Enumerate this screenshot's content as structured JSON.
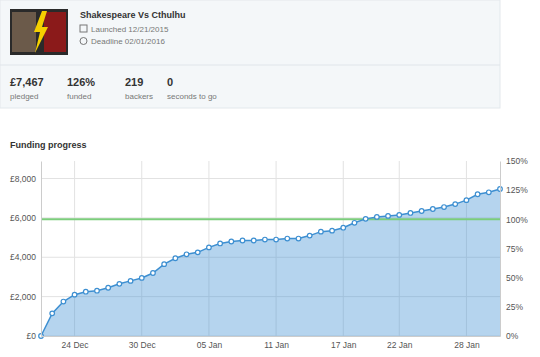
{
  "header": {
    "title": "Shakespeare Vs Cthulhu",
    "launched": "Launched 12/21/2015",
    "deadline": "Deadline 02/01/2016"
  },
  "stats": [
    {
      "value": "£7,467",
      "label": "pledged"
    },
    {
      "value": "126%",
      "label": "funded"
    },
    {
      "value": "219",
      "label": "backers"
    },
    {
      "value": "0",
      "label": "seconds to go"
    }
  ],
  "chart_data": {
    "type": "area",
    "title": "Funding progress",
    "categories": [
      null,
      null,
      null,
      "24 Dec",
      null,
      null,
      null,
      null,
      null,
      "30 Dec",
      null,
      null,
      null,
      null,
      null,
      "05 Jan",
      null,
      null,
      null,
      null,
      null,
      "11 Jan",
      null,
      null,
      null,
      null,
      null,
      "17 Jan",
      null,
      null,
      null,
      null,
      "22 Jan",
      null,
      null,
      null,
      null,
      null,
      "28 Jan",
      null,
      null,
      null
    ],
    "values": [
      0,
      1150,
      1750,
      2100,
      2250,
      2300,
      2450,
      2650,
      2800,
      2950,
      3200,
      3650,
      3950,
      4150,
      4250,
      4500,
      4700,
      4800,
      4850,
      4850,
      4900,
      4900,
      4950,
      4950,
      5100,
      5300,
      5350,
      5500,
      5750,
      5950,
      6050,
      6100,
      6150,
      6250,
      6350,
      6450,
      6550,
      6700,
      6900,
      7200,
      7300,
      7467
    ],
    "color": "#3d8fd1",
    "marker": "circle",
    "goal": 5926,
    "ylim": [
      0,
      8889
    ],
    "yticks": [
      {
        "value": 0,
        "label": "£0"
      },
      {
        "value": 2000,
        "label": "£2,000"
      },
      {
        "value": 4000,
        "label": "£4,000"
      },
      {
        "value": 6000,
        "label": "£6,000"
      },
      {
        "value": 8000,
        "label": "£8,000"
      }
    ],
    "y2lim": [
      0,
      150
    ],
    "y2ticks": [
      {
        "value": 0,
        "label": "0%"
      },
      {
        "value": 25,
        "label": "25%"
      },
      {
        "value": 50,
        "label": "50%"
      },
      {
        "value": 75,
        "label": "75%"
      },
      {
        "value": 100,
        "label": "100%"
      },
      {
        "value": 125,
        "label": "125%"
      },
      {
        "value": 150,
        "label": "150%"
      }
    ],
    "grid": true
  }
}
